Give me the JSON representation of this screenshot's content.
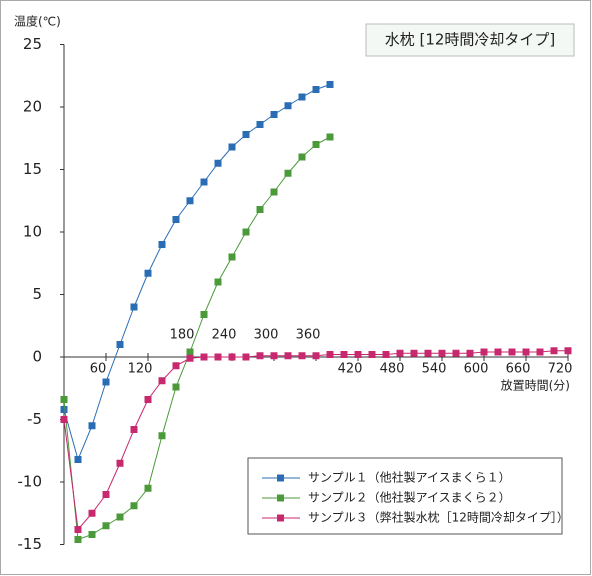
{
  "chart_data": {
    "type": "line",
    "title": "水枕 [12時間冷却タイプ]",
    "y_label": "温度(℃)",
    "x_label": "放置時間(分)",
    "xlim": [
      0,
      720
    ],
    "xticks": [
      60,
      120,
      180,
      240,
      300,
      360,
      420,
      480,
      540,
      600,
      660,
      720
    ],
    "ylim": [
      -15,
      25
    ],
    "yticks": [
      -15,
      -10,
      -5,
      0,
      5,
      10,
      15,
      20,
      25
    ],
    "grid": false,
    "legend": "lower right",
    "series": [
      {
        "name": "サンプル１（他社製アイスまくら１）",
        "color": "#2a6db5",
        "x": [
          0,
          20,
          40,
          60,
          80,
          100,
          120,
          140,
          160,
          180,
          200,
          220,
          240,
          260,
          280,
          300,
          320,
          340,
          360,
          380
        ],
        "values": [
          -4.2,
          -8.2,
          -5.5,
          -2,
          1,
          4,
          6.7,
          9,
          11,
          12.5,
          14,
          15.5,
          16.8,
          17.8,
          18.6,
          19.4,
          20.1,
          20.8,
          21.4,
          21.8
        ]
      },
      {
        "name": "サンプル２（他社製アイスまくら２）",
        "color": "#4a9a3a",
        "x": [
          0,
          20,
          40,
          60,
          80,
          100,
          120,
          140,
          160,
          180,
          200,
          220,
          240,
          260,
          280,
          300,
          320,
          340,
          360,
          380
        ],
        "values": [
          -3.4,
          -14.6,
          -14.2,
          -13.5,
          -12.8,
          -11.9,
          -10.5,
          -6.3,
          -2.4,
          0.4,
          3.4,
          6,
          8,
          10,
          11.8,
          13.2,
          14.7,
          16,
          17,
          17.6
        ]
      },
      {
        "name": "サンプル３（弊社製水枕［12時間冷却タイプ］）",
        "color": "#c8286e",
        "x": [
          0,
          20,
          40,
          60,
          80,
          100,
          120,
          140,
          160,
          180,
          200,
          220,
          240,
          260,
          280,
          300,
          320,
          340,
          360,
          380,
          400,
          420,
          440,
          460,
          480,
          500,
          520,
          540,
          560,
          580,
          600,
          620,
          640,
          660,
          680,
          700,
          720
        ],
        "values": [
          -5,
          -13.8,
          -12.5,
          -11,
          -8.5,
          -5.8,
          -3.4,
          -1.9,
          -0.7,
          -0.1,
          0,
          0,
          0,
          0,
          0.1,
          0.1,
          0.1,
          0.1,
          0.1,
          0.2,
          0.2,
          0.2,
          0.2,
          0.2,
          0.3,
          0.3,
          0.3,
          0.3,
          0.3,
          0.3,
          0.4,
          0.4,
          0.4,
          0.4,
          0.4,
          0.5,
          0.5
        ]
      }
    ]
  }
}
